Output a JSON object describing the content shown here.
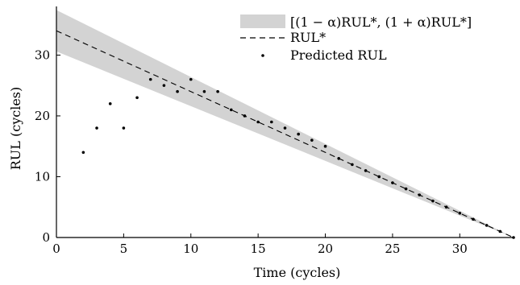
{
  "chart_data": {
    "type": "line",
    "xlabel": "Time (cycles)",
    "ylabel": "RUL (cycles)",
    "xlim": [
      0,
      34
    ],
    "ylim": [
      0,
      38
    ],
    "xticks": [
      "0",
      "5",
      "10",
      "15",
      "20",
      "25",
      "30"
    ],
    "yticks": [
      "0",
      "10",
      "20",
      "30"
    ],
    "legend_position": "top-right",
    "legend": [
      {
        "label": "[(1 − α)RUL*, (1 + α)RUL*]",
        "style": "band",
        "color": "#d3d3d3"
      },
      {
        "label": "RUL*",
        "style": "dashed-line",
        "color": "#000000"
      },
      {
        "label": "Predicted RUL",
        "style": "dot",
        "color": "#000000"
      }
    ],
    "series": [
      {
        "name": "[(1 − α)RUL*, (1 + α)RUL*]",
        "type": "band",
        "x": [
          0,
          34
        ],
        "lower": [
          30.6,
          0
        ],
        "upper": [
          37.4,
          0
        ]
      },
      {
        "name": "RUL*",
        "type": "line",
        "x": [
          0,
          34
        ],
        "y": [
          34,
          0
        ]
      },
      {
        "name": "Predicted RUL",
        "type": "scatter",
        "x": [
          2,
          3,
          4,
          5,
          6,
          7,
          8,
          9,
          10,
          11,
          12,
          13,
          14,
          15,
          16,
          17,
          18,
          19,
          20,
          21,
          22,
          23,
          24,
          25,
          26,
          27,
          28,
          29,
          30,
          31,
          32,
          33,
          34
        ],
        "y": [
          14,
          18,
          22,
          18,
          23,
          26,
          25,
          24,
          26,
          24,
          24,
          21,
          20,
          19,
          19,
          18,
          17,
          16,
          15,
          13,
          12,
          11,
          10,
          9,
          8,
          7,
          6,
          5,
          4,
          3,
          2,
          1,
          0
        ]
      }
    ]
  }
}
